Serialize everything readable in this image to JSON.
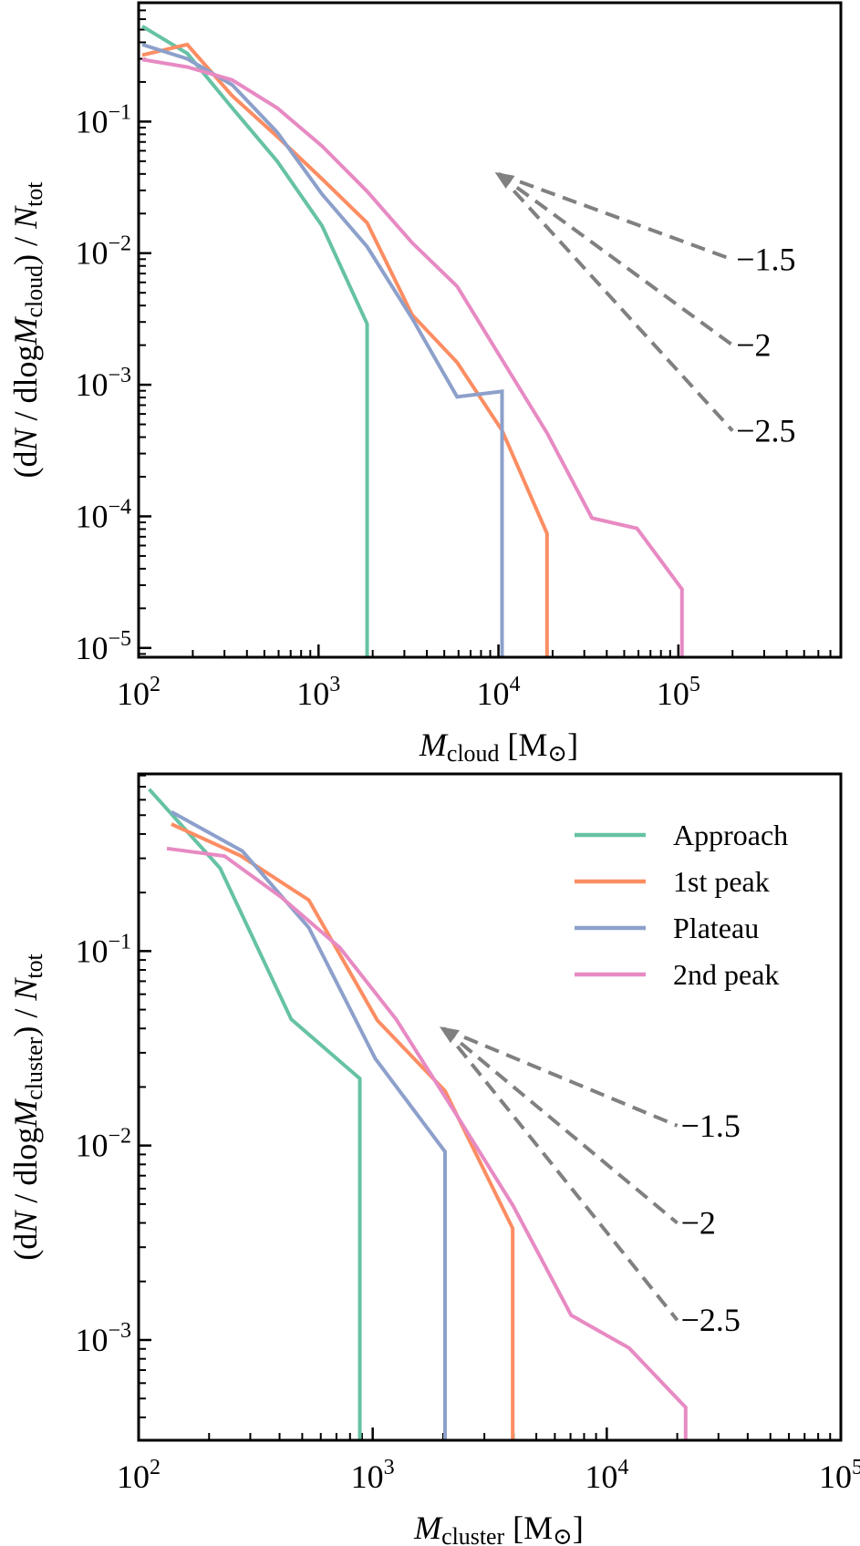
{
  "colors": {
    "Approach": "#66c2a5",
    "1st peak": "#fc8d62",
    "Plateau": "#8da0cb",
    "2nd peak": "#e78ac3",
    "reference": "#808080",
    "axes": "#000000"
  },
  "chart_data": [
    {
      "type": "line",
      "panel": "top",
      "xscale": "log",
      "yscale": "log",
      "xlim": [
        100,
        800000
      ],
      "ylim": [
        8.5e-06,
        0.8
      ],
      "xticks": [
        {
          "base": "10",
          "exp": "2",
          "value": 100
        },
        {
          "base": "10",
          "exp": "3",
          "value": 1000
        },
        {
          "base": "10",
          "exp": "4",
          "value": 10000
        },
        {
          "base": "10",
          "exp": "5",
          "value": 100000
        }
      ],
      "yticks": [
        {
          "base": "10",
          "exp": "−1",
          "value": 0.1
        },
        {
          "base": "10",
          "exp": "−2",
          "value": 0.01
        },
        {
          "base": "10",
          "exp": "−3",
          "value": 0.001
        },
        {
          "base": "10",
          "exp": "−4",
          "value": 0.0001
        },
        {
          "base": "10",
          "exp": "−5",
          "value": 1e-05
        }
      ],
      "xlabel": [
        {
          "t": "M",
          "i": 1
        },
        {
          "t": "cloud",
          "sub": 1
        },
        {
          "t": " [M"
        },
        {
          "t": "⊙",
          "sub": 1
        },
        {
          "t": "]"
        }
      ],
      "ylabel": [
        {
          "t": "(d"
        },
        {
          "t": "N",
          "i": 1
        },
        {
          "t": " / dlog"
        },
        {
          "t": "M",
          "i": 1
        },
        {
          "t": "cloud",
          "sub": 1
        },
        {
          "t": ") / "
        },
        {
          "t": "N",
          "i": 1
        },
        {
          "t": "tot",
          "sub": 1
        }
      ],
      "legend": null,
      "series": [
        {
          "name": "Approach",
          "x_log10": [
            2.02,
            2.27,
            2.52,
            2.77,
            3.02,
            3.27
          ],
          "y": [
            0.53,
            0.33,
            0.127,
            0.05,
            0.0161,
            0.0029
          ],
          "drop_to_axis": true
        },
        {
          "name": "1st peak",
          "x_log10": [
            2.02,
            2.27,
            2.52,
            2.77,
            3.02,
            3.27,
            3.52,
            3.77,
            4.02,
            4.27
          ],
          "y": [
            0.32,
            0.385,
            0.157,
            0.077,
            0.0366,
            0.017,
            0.0034,
            0.00148,
            0.00045,
            7.4e-05
          ],
          "drop_to_axis": true
        },
        {
          "name": "Plateau",
          "x_log10": [
            2.02,
            2.27,
            2.52,
            2.77,
            3.02,
            3.27,
            3.52,
            3.77,
            4.02
          ],
          "y": [
            0.385,
            0.3,
            0.19,
            0.083,
            0.028,
            0.0112,
            0.0032,
            0.00081,
            0.00089
          ],
          "drop_to_axis": true
        },
        {
          "name": "2nd peak",
          "x_log10": [
            2.02,
            2.27,
            2.52,
            2.77,
            3.02,
            3.27,
            3.52,
            3.77,
            4.02,
            4.27,
            4.52,
            4.77,
            5.02
          ],
          "y": [
            0.296,
            0.26,
            0.207,
            0.127,
            0.065,
            0.0295,
            0.012,
            0.0056,
            0.00155,
            0.00043,
            9.7e-05,
            8.1e-05,
            2.8e-05
          ],
          "drop_to_axis": true
        }
      ],
      "reference_slopes": {
        "start": [
          10000,
          0.04
        ],
        "end_x": 200000,
        "lines": [
          {
            "label": "−1.5",
            "index": -1.5
          },
          {
            "label": "−2",
            "index": -2
          },
          {
            "label": "−2.5",
            "index": -2.5
          }
        ]
      }
    },
    {
      "type": "line",
      "panel": "bottom",
      "xscale": "log",
      "yscale": "log",
      "xlim": [
        100,
        100000
      ],
      "ylim": [
        0.000305,
        0.815
      ],
      "xticks": [
        {
          "base": "10",
          "exp": "2",
          "value": 100
        },
        {
          "base": "10",
          "exp": "3",
          "value": 1000
        },
        {
          "base": "10",
          "exp": "4",
          "value": 10000
        },
        {
          "base": "10",
          "exp": "5",
          "value": 100000
        }
      ],
      "yticks": [
        {
          "base": "10",
          "exp": "−1",
          "value": 0.1
        },
        {
          "base": "10",
          "exp": "−2",
          "value": 0.01
        },
        {
          "base": "10",
          "exp": "−3",
          "value": 0.001
        }
      ],
      "xlabel": [
        {
          "t": "M",
          "i": 1
        },
        {
          "t": "cluster",
          "sub": 1
        },
        {
          "t": " [M"
        },
        {
          "t": "⊙",
          "sub": 1
        },
        {
          "t": "]"
        }
      ],
      "ylabel": [
        {
          "t": "(d"
        },
        {
          "t": "N",
          "i": 1
        },
        {
          "t": " / dlog"
        },
        {
          "t": "M",
          "i": 1
        },
        {
          "t": "cluster",
          "sub": 1
        },
        {
          "t": ") / "
        },
        {
          "t": "N",
          "i": 1
        },
        {
          "t": "tot",
          "sub": 1
        }
      ],
      "legend": {
        "placement": "top-right",
        "entries": [
          "Approach",
          "1st peak",
          "Plateau",
          "2nd peak"
        ]
      },
      "series": [
        {
          "name": "Approach",
          "x_log10": [
            2.045,
            2.348,
            2.652,
            2.945
          ],
          "y": [
            0.68,
            0.267,
            0.0446,
            0.0221
          ],
          "drop_to_axis": true
        },
        {
          "name": "1st peak",
          "x_log10": [
            2.14,
            2.434,
            2.727,
            3.02,
            3.309,
            3.598
          ],
          "y": [
            0.45,
            0.31,
            0.183,
            0.044,
            0.0191,
            0.00375
          ],
          "drop_to_axis": true
        },
        {
          "name": "Plateau",
          "x_log10": [
            2.14,
            2.443,
            2.727,
            3.011,
            3.309
          ],
          "y": [
            0.52,
            0.327,
            0.132,
            0.028,
            0.0093
          ],
          "drop_to_axis": true
        },
        {
          "name": "2nd peak",
          "x_log10": [
            2.121,
            2.367,
            2.61,
            2.86,
            3.1,
            3.35,
            3.6,
            3.848,
            4.095,
            4.337
          ],
          "y": [
            0.337,
            0.308,
            0.189,
            0.104,
            0.0446,
            0.0149,
            0.0049,
            0.00134,
            0.00091,
            0.00045
          ],
          "drop_to_axis": true
        }
      ],
      "reference_slopes": {
        "start": [
          2000,
          0.04
        ],
        "end_x": 20000,
        "lines": [
          {
            "label": "−1.5",
            "index": -1.5
          },
          {
            "label": "−2",
            "index": -2
          },
          {
            "label": "−2.5",
            "index": -2.5
          }
        ]
      }
    }
  ]
}
